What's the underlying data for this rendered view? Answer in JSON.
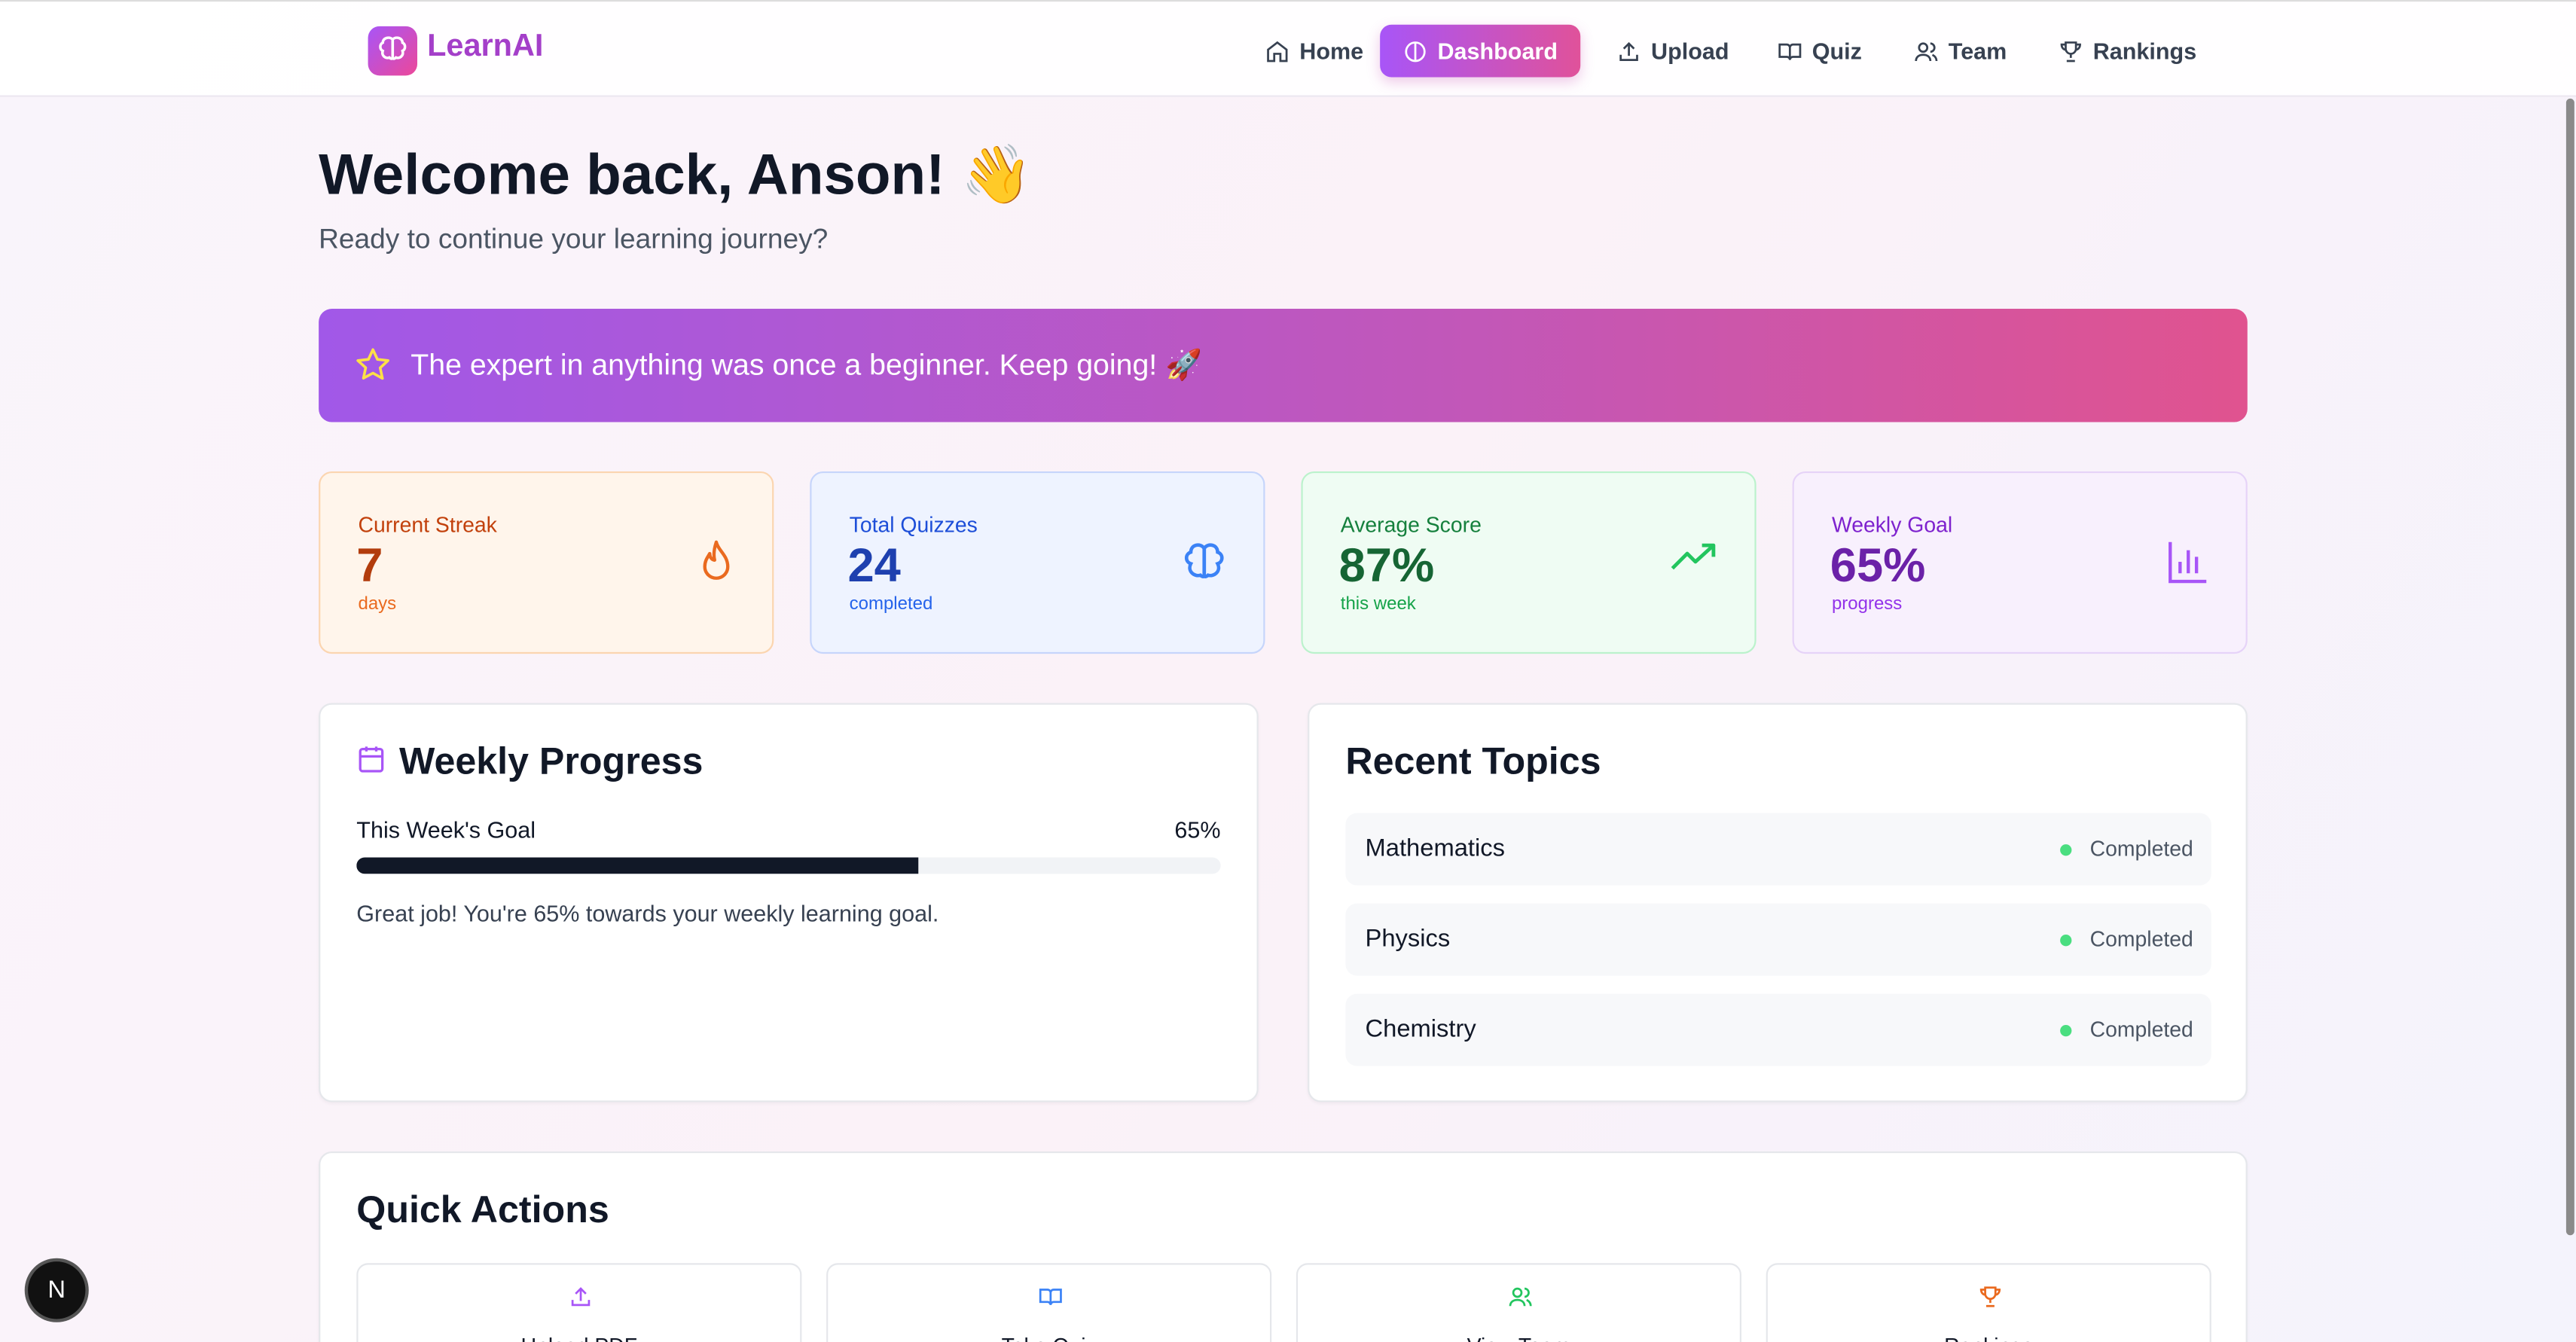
{
  "navbar": {
    "logo": "LearnAI",
    "items": [
      "Home",
      "Dashboard",
      "Upload",
      "Quiz",
      "Team",
      "Rankings"
    ],
    "active": "Dashboard"
  },
  "welcome": {
    "title": "Welcome back, Anson! 👋",
    "subtitle": "Ready to continue your learning journey?"
  },
  "banner": {
    "quote": "The expert in anything was once a beginner. Keep going! 🚀"
  },
  "stats": [
    {
      "label": "Current Streak",
      "value": "7",
      "unit": "days"
    },
    {
      "label": "Total Quizzes",
      "value": "24",
      "unit": "completed"
    },
    {
      "label": "Average Score",
      "value": "87%",
      "unit": "this week"
    },
    {
      "label": "Weekly Goal",
      "value": "65%",
      "unit": "progress"
    }
  ],
  "weekly_progress": {
    "title": "Weekly Progress",
    "goal_label": "This Week's Goal",
    "value": 65,
    "value_label": "65%",
    "message": "Great job! You're 65% towards your weekly learning goal."
  },
  "recent_topics": {
    "title": "Recent Topics",
    "items": [
      {
        "name": "Mathematics",
        "status": "Completed"
      },
      {
        "name": "Physics",
        "status": "Completed"
      },
      {
        "name": "Chemistry",
        "status": "Completed"
      }
    ]
  },
  "quick_actions": {
    "title": "Quick Actions",
    "items": [
      "Upload PDF",
      "Take Quiz",
      "View Team",
      "Rankings"
    ]
  },
  "dev_badge": "N"
}
